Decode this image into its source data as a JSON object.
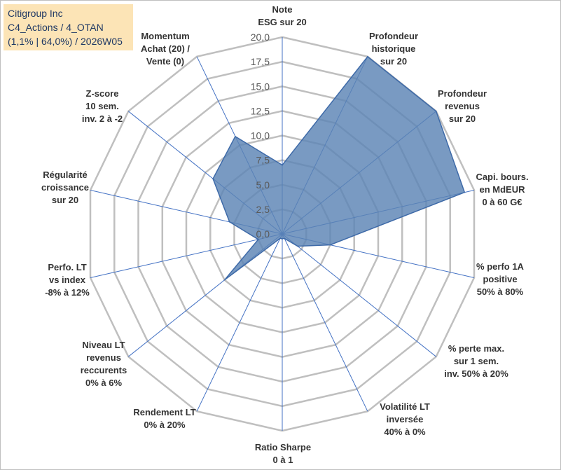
{
  "title_box": {
    "line1": "Citigroup Inc",
    "line2": "C4_Actions / 4_OTAN",
    "line3": "(1,1% | 64,0%) / 2026W05"
  },
  "colors": {
    "fill": "#5b84b4",
    "stroke": "#3e6aa8",
    "grid": "#bfbfbf",
    "spoke": "#4472c4",
    "title_bg": "#fce4b6"
  },
  "chart_data": {
    "type": "radar",
    "rmax": 20,
    "ticks": [
      "0,0",
      "2,5",
      "5,0",
      "7,5",
      "10,0",
      "12,5",
      "15,0",
      "17,5",
      "20,0"
    ],
    "tick_values": [
      0,
      2.5,
      5,
      7.5,
      10,
      12.5,
      15,
      17.5,
      20
    ],
    "axes": [
      {
        "label": [
          "Note",
          "ESG sur 20"
        ],
        "value": 7.0
      },
      {
        "label": [
          "Profondeur",
          "historique",
          "sur 20"
        ],
        "value": 20.0
      },
      {
        "label": [
          "Profondeur",
          "revenus",
          "sur 20"
        ],
        "value": 20.0
      },
      {
        "label": [
          "Capi. bours.",
          "en MdEUR",
          "0 à 60 G€"
        ],
        "value": 19.0
      },
      {
        "label": [
          "% perfo 1A",
          "positive",
          "50% à 80%"
        ],
        "value": 5.0
      },
      {
        "label": [
          "% perte max.",
          "sur 1 sem.",
          "inv. 50% à 20%"
        ],
        "value": 2.0
      },
      {
        "label": [
          "Volatilité LT",
          "inversée",
          "40% à 0%"
        ],
        "value": 0.5
      },
      {
        "label": [
          "Ratio Sharpe",
          "0 à 1"
        ],
        "value": 0.5
      },
      {
        "label": [
          "Rendement LT",
          "0% à 20%"
        ],
        "value": 0.5
      },
      {
        "label": [
          "Niveau LT",
          "revenus",
          "reccurents",
          "0% à 6%"
        ],
        "value": 7.5
      },
      {
        "label": [
          "Perfo. LT",
          "vs index",
          "-8% à 12%"
        ],
        "value": 2.5
      },
      {
        "label": [
          "Régularité",
          "croissance",
          "sur 20"
        ],
        "value": 5.5
      },
      {
        "label": [
          "Z-score",
          "10 sem.",
          "inv. 2 à -2"
        ],
        "value": 9.0
      },
      {
        "label": [
          "Momentum",
          "Achat (20) /",
          "Vente (0)"
        ],
        "value": 11.0
      }
    ]
  }
}
